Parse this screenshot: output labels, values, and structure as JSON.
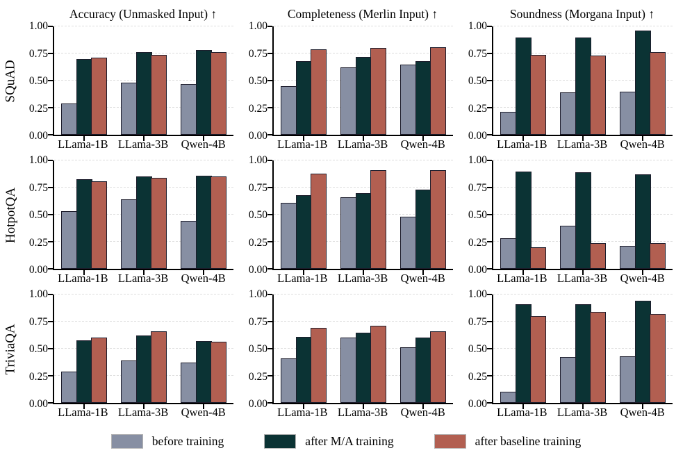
{
  "legend": [
    {
      "label": "before training",
      "color": "#878fa3"
    },
    {
      "label": "after M/A training",
      "color": "#0b3334"
    },
    {
      "label": "after baseline training",
      "color": "#b25f51"
    }
  ],
  "style": {
    "bar_edge": "#1d1d2c",
    "grid_color": "#dcdcdc",
    "axis_color": "#000000"
  },
  "chart_data": {
    "type": "bar",
    "layout": "3x3 grid of grouped bar subplots",
    "ylim": [
      0,
      1
    ],
    "yticks": [
      0,
      0.25,
      0.5,
      0.75,
      1
    ],
    "ytick_labels": [
      "0.00",
      "0.25",
      "0.50",
      "0.75",
      "1.00"
    ],
    "grid": "horizontal dashed gridlines at yticks",
    "legend_position": "bottom",
    "categories": [
      "LLama-1B",
      "LLama-3B",
      "Qwen-4B"
    ],
    "columns": [
      "Accuracy (Unmasked Input) ↑",
      "Completeness (Merlin Input) ↑",
      "Soundness (Morgana Input) ↑"
    ],
    "rows": [
      "SQuAD",
      "HotpotQA",
      "TriviaQA"
    ],
    "series_names": [
      "before training",
      "after M/A training",
      "after baseline training"
    ],
    "subplots": [
      {
        "row": "SQuAD",
        "column": "Accuracy (Unmasked Input) ↑",
        "series": [
          {
            "name": "before training",
            "values": [
              0.29,
              0.48,
              0.47
            ]
          },
          {
            "name": "after M/A training",
            "values": [
              0.7,
              0.76,
              0.78
            ]
          },
          {
            "name": "after baseline training",
            "values": [
              0.71,
              0.74,
              0.76
            ]
          }
        ]
      },
      {
        "row": "SQuAD",
        "column": "Completeness (Merlin Input) ↑",
        "series": [
          {
            "name": "before training",
            "values": [
              0.45,
              0.62,
              0.65
            ]
          },
          {
            "name": "after M/A training",
            "values": [
              0.68,
              0.72,
              0.68
            ]
          },
          {
            "name": "after baseline training",
            "values": [
              0.79,
              0.8,
              0.81
            ]
          }
        ]
      },
      {
        "row": "SQuAD",
        "column": "Soundness (Morgana Input) ↑",
        "series": [
          {
            "name": "before training",
            "values": [
              0.21,
              0.39,
              0.4
            ]
          },
          {
            "name": "after M/A training",
            "values": [
              0.9,
              0.9,
              0.96
            ]
          },
          {
            "name": "after baseline training",
            "values": [
              0.74,
              0.73,
              0.76
            ]
          }
        ]
      },
      {
        "row": "HotpotQA",
        "column": "Accuracy (Unmasked Input) ↑",
        "series": [
          {
            "name": "before training",
            "values": [
              0.53,
              0.64,
              0.44
            ]
          },
          {
            "name": "after M/A training",
            "values": [
              0.83,
              0.85,
              0.86
            ]
          },
          {
            "name": "after baseline training",
            "values": [
              0.81,
              0.84,
              0.85
            ]
          }
        ]
      },
      {
        "row": "HotpotQA",
        "column": "Completeness (Merlin Input) ↑",
        "series": [
          {
            "name": "before training",
            "values": [
              0.61,
              0.66,
              0.48
            ]
          },
          {
            "name": "after M/A training",
            "values": [
              0.68,
              0.7,
              0.73
            ]
          },
          {
            "name": "after baseline training",
            "values": [
              0.88,
              0.91,
              0.91
            ]
          }
        ]
      },
      {
        "row": "HotpotQA",
        "column": "Soundness (Morgana Input) ↑",
        "series": [
          {
            "name": "before training",
            "values": [
              0.28,
              0.4,
              0.21
            ]
          },
          {
            "name": "after M/A training",
            "values": [
              0.9,
              0.89,
              0.87
            ]
          },
          {
            "name": "after baseline training",
            "values": [
              0.2,
              0.24,
              0.24
            ]
          }
        ]
      },
      {
        "row": "TriviaQA",
        "column": "Accuracy (Unmasked Input) ↑",
        "series": [
          {
            "name": "before training",
            "values": [
              0.29,
              0.39,
              0.37
            ]
          },
          {
            "name": "after M/A training",
            "values": [
              0.58,
              0.62,
              0.57
            ]
          },
          {
            "name": "after baseline training",
            "values": [
              0.6,
              0.66,
              0.565
            ]
          }
        ]
      },
      {
        "row": "TriviaQA",
        "column": "Completeness (Merlin Input) ↑",
        "series": [
          {
            "name": "before training",
            "values": [
              0.41,
              0.6,
              0.51
            ]
          },
          {
            "name": "after M/A training",
            "values": [
              0.61,
              0.65,
              0.6
            ]
          },
          {
            "name": "after baseline training",
            "values": [
              0.69,
              0.71,
              0.66
            ]
          }
        ]
      },
      {
        "row": "TriviaQA",
        "column": "Soundness (Morgana Input) ↑",
        "series": [
          {
            "name": "before training",
            "values": [
              0.1,
              0.42,
              0.43
            ]
          },
          {
            "name": "after M/A training",
            "values": [
              0.91,
              0.91,
              0.94
            ]
          },
          {
            "name": "after baseline training",
            "values": [
              0.8,
              0.84,
              0.82
            ]
          }
        ]
      }
    ]
  }
}
